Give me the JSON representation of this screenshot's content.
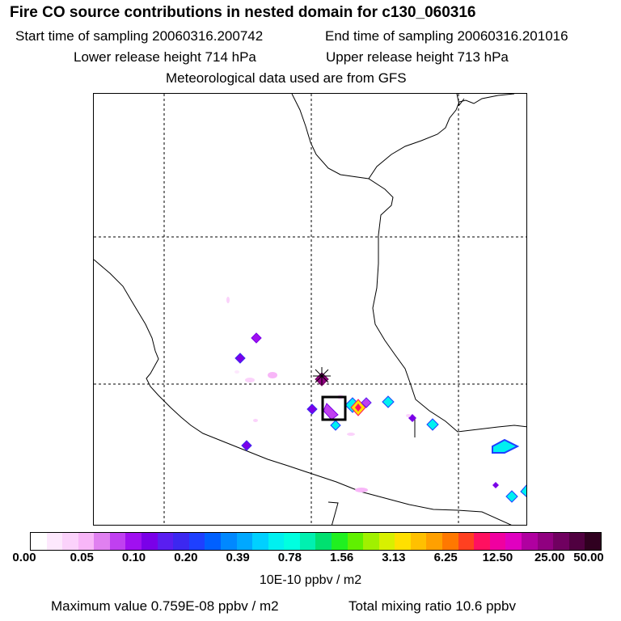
{
  "header": {
    "title": "Fire CO source contributions in nested domain for c130_060316",
    "start_label": "Start time of sampling 20060316.200742",
    "end_label": "End time of sampling 20060316.201016",
    "lower_label": "Lower release height  714 hPa",
    "upper_label": "Upper release height  713 hPa",
    "met_label": "Meteorological data used are from GFS"
  },
  "colorbar": {
    "colors": [
      "#ffffff",
      "#fde8fd",
      "#fbd2fb",
      "#f8b6f8",
      "#e080f0",
      "#c040f0",
      "#a010f0",
      "#7a00e8",
      "#5a1ef0",
      "#3c28f0",
      "#1e40ff",
      "#0060ff",
      "#0088ff",
      "#00a8ff",
      "#00d0ff",
      "#00f0f0",
      "#00ffe0",
      "#00f0b0",
      "#00e070",
      "#20f020",
      "#60f000",
      "#a0f000",
      "#d8f000",
      "#ffe000",
      "#ffc000",
      "#ffa000",
      "#ff7800",
      "#ff4020",
      "#ff1060",
      "#f000a0",
      "#e000c0",
      "#b000a0",
      "#900080",
      "#700060",
      "#500040",
      "#300020"
    ],
    "tick_labels": [
      "0.00",
      "0.05",
      "0.10",
      "0.20",
      "0.39",
      "0.78",
      "1.56",
      "3.13",
      "6.25",
      "12.50",
      "25.00",
      "50.00"
    ],
    "units": "10E-10 ppbv / m2"
  },
  "footer": {
    "max_value": "Maximum value  0.759E-08 ppbv / m2",
    "total_mixing": "Total mixing ratio       10.6 ppbv"
  },
  "map": {
    "receptor_marker": "asterisk-icon",
    "source_box": "square-box-icon"
  }
}
